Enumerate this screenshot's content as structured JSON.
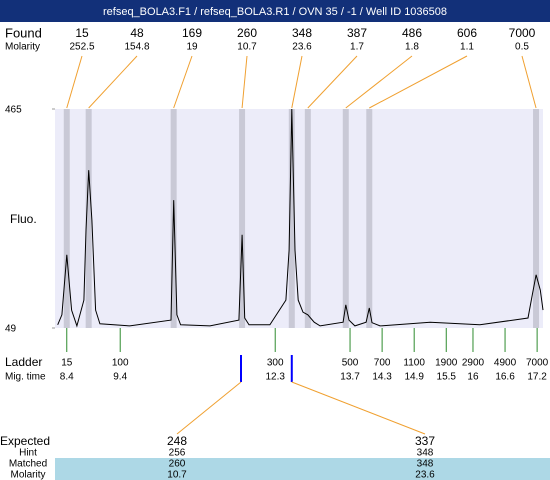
{
  "header": {
    "title": "refseq_BOLA3.F1 / refseq_BOLA3.R1 / OVN 35 / -1 / Well ID 1036508"
  },
  "chart_data": {
    "type": "line",
    "y_label": "Fluo.",
    "color": "#000000",
    "x": [
      8.23,
      8.31,
      8.4,
      8.49,
      8.59,
      8.72,
      8.76,
      8.81,
      8.87,
      8.94,
      9.02,
      9.58,
      10.35,
      10.4,
      10.46,
      10.53,
      11.08,
      11.62,
      11.68,
      11.73,
      11.81,
      12.2,
      12.5,
      12.56,
      12.61,
      12.67,
      12.73,
      12.82,
      12.91,
      13.03,
      13.14,
      13.57,
      13.62,
      13.68,
      13.79,
      14.0,
      14.06,
      14.11,
      14.26,
      15.2,
      16.13,
      17.03,
      17.11,
      17.18,
      17.26,
      17.31
    ],
    "values": [
      55,
      74,
      188,
      83,
      53,
      102,
      235,
      349,
      254,
      83,
      57,
      53,
      64,
      292,
      74,
      55,
      53,
      64,
      226,
      68,
      55,
      55,
      102,
      197,
      465,
      197,
      102,
      79,
      74,
      60,
      53,
      60,
      93,
      64,
      53,
      60,
      87,
      59,
      53,
      60,
      55,
      68,
      112,
      150,
      121,
      83
    ],
    "xlim": [
      8.18,
      17.31
    ],
    "ylim": [
      49,
      465
    ],
    "yticks": [
      49,
      465
    ],
    "found": {
      "label": "Found",
      "molarity_label": "Molarity",
      "sizes": [
        15,
        48,
        169,
        260,
        348,
        387,
        486,
        606,
        7000
      ],
      "molarities": [
        252.5,
        154.8,
        19,
        10.7,
        23.6,
        1.7,
        1.8,
        1.1,
        0.5
      ],
      "times": [
        8.4,
        8.81,
        10.4,
        11.68,
        12.61,
        12.91,
        13.62,
        14.06,
        17.18
      ]
    },
    "ladder": {
      "label": "Ladder",
      "time_label": "Mig. time",
      "sizes": [
        15,
        100,
        300,
        500,
        700,
        1100,
        1900,
        2900,
        4900,
        7000
      ],
      "times": [
        8.4,
        9.4,
        12.3,
        13.7,
        14.3,
        14.9,
        15.5,
        16,
        16.6,
        17.2
      ]
    },
    "expected": {
      "label": "Expected",
      "hint_label": "Hint",
      "matched_label": "Matched",
      "molarity_label": "Molarity",
      "expected": [
        248,
        337
      ],
      "hints": [
        256,
        348
      ],
      "matched": [
        260,
        348
      ],
      "molarities": [
        10.7,
        23.6
      ],
      "times": [
        11.66,
        12.61
      ]
    }
  }
}
